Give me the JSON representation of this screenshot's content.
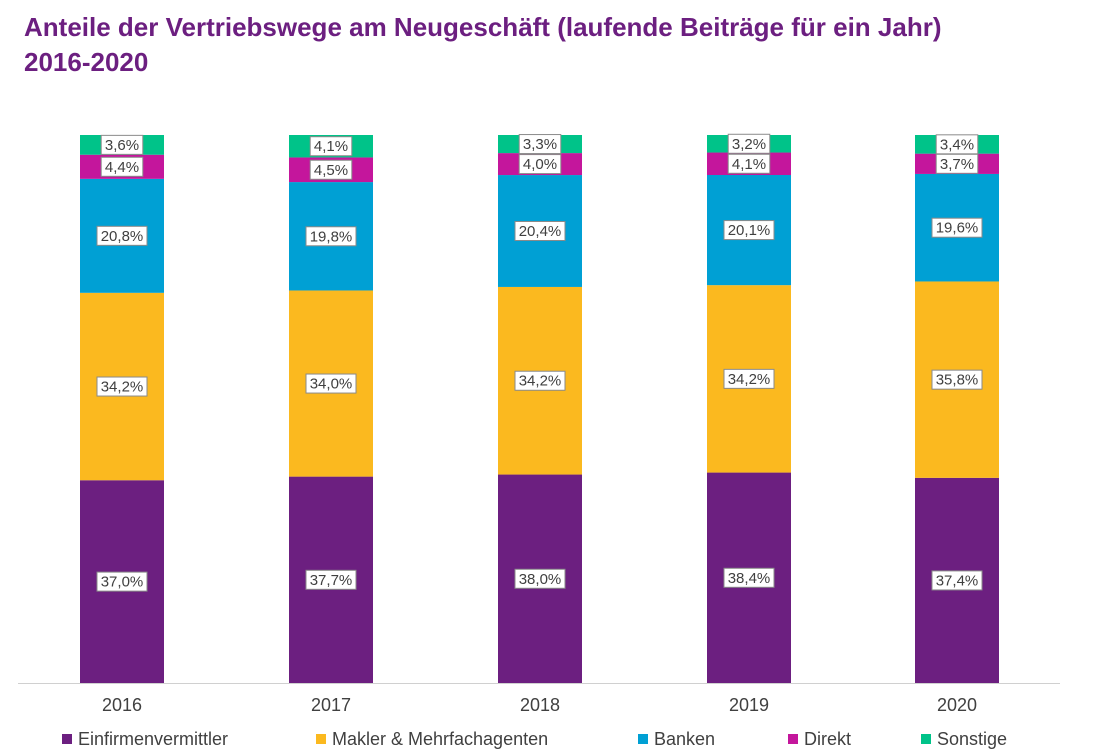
{
  "title_line1": "Anteile der Vertriebswege am Neugeschäft (laufende Beiträge für ein Jahr)",
  "title_line2": "2016-2020",
  "chart_data": {
    "type": "bar",
    "stacked": true,
    "categories": [
      "2016",
      "2017",
      "2018",
      "2019",
      "2020"
    ],
    "series": [
      {
        "name": "Einfirmenvermittler",
        "color": "#6c1f80",
        "values": [
          37.0,
          37.7,
          38.0,
          38.4,
          37.4
        ],
        "labels": [
          "37,0%",
          "37,7%",
          "38,0%",
          "38,4%",
          "37,4%"
        ]
      },
      {
        "name": "Makler & Mehrfachagenten",
        "color": "#fbb91f",
        "values": [
          34.2,
          34.0,
          34.2,
          34.2,
          35.8
        ],
        "labels": [
          "34,2%",
          "34,0%",
          "34,2%",
          "34,2%",
          "35,8%"
        ]
      },
      {
        "name": "Banken",
        "color": "#00a0d4",
        "values": [
          20.8,
          19.8,
          20.4,
          20.1,
          19.6
        ],
        "labels": [
          "20,8%",
          "19,8%",
          "20,4%",
          "20,1%",
          "19,6%"
        ]
      },
      {
        "name": "Direkt",
        "color": "#c4169c",
        "values": [
          4.4,
          4.5,
          4.0,
          4.1,
          3.7
        ],
        "labels": [
          "4,4%",
          "4,5%",
          "4,0%",
          "4,1%",
          "3,7%"
        ]
      },
      {
        "name": "Sonstige",
        "color": "#00c389",
        "values": [
          3.6,
          4.1,
          3.3,
          3.2,
          3.4
        ],
        "labels": [
          "3,6%",
          "4,1%",
          "3,3%",
          "3,2%",
          "3,4%"
        ]
      }
    ],
    "ylim": [
      0,
      100
    ],
    "legend": "bottom",
    "grid": false
  }
}
